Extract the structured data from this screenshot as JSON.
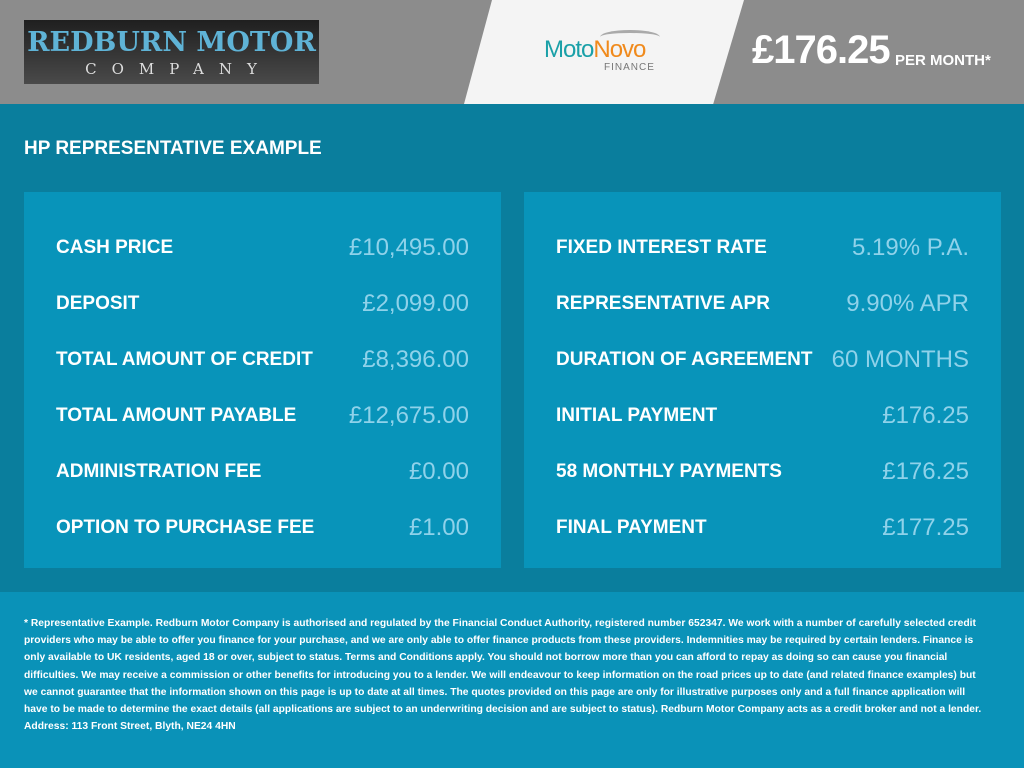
{
  "header": {
    "logo_line1": "REDBURN MOTOR",
    "logo_line2": "COMPANY",
    "partner_moto": "Moto",
    "partner_novo": "Novo",
    "partner_finance": "FINANCE",
    "monthly_price": "£176.25",
    "per_month": "PER MONTH*"
  },
  "main": {
    "title": "HP REPRESENTATIVE EXAMPLE",
    "left": [
      {
        "label": "CASH PRICE",
        "value": "£10,495.00"
      },
      {
        "label": "DEPOSIT",
        "value": "£2,099.00"
      },
      {
        "label": "TOTAL AMOUNT OF CREDIT",
        "value": "£8,396.00"
      },
      {
        "label": "TOTAL AMOUNT PAYABLE",
        "value": "£12,675.00"
      },
      {
        "label": "ADMINISTRATION FEE",
        "value": "£0.00"
      },
      {
        "label": "OPTION TO PURCHASE FEE",
        "value": "£1.00"
      }
    ],
    "right": [
      {
        "label": "FIXED INTEREST RATE",
        "value": "5.19% P.A."
      },
      {
        "label": "REPRESENTATIVE APR",
        "value": "9.90% APR"
      },
      {
        "label": "DURATION OF AGREEMENT",
        "value": "60 MONTHS"
      },
      {
        "label": "INITIAL PAYMENT",
        "value": "£176.25"
      },
      {
        "label": "58 MONTHLY PAYMENTS",
        "value": "£176.25"
      },
      {
        "label": "FINAL PAYMENT",
        "value": "£177.25"
      }
    ]
  },
  "footer": {
    "disclaimer": "* Representative Example. Redburn Motor Company is authorised and regulated by the Financial Conduct Authority, registered number 652347. We work with a number of carefully selected credit providers who may be able to offer you finance for your purchase, and we are only able to offer finance products from these providers. Indemnities may be required by certain lenders. Finance is only available to UK residents, aged 18 or over, subject to status. Terms and Conditions apply. You should not borrow more than you can afford to repay as doing so can cause you financial difficulties. We may receive a commission or other benefits for introducing you to a lender. We will endeavour to keep information on the road prices up to date (and related finance examples) but we cannot guarantee that the information shown on this page is up to date at all times. The quotes provided on this page are only for illustrative purposes only and a full finance application will have to be made to determine the exact details (all applications are subject to an underwriting decision and are subject to status). Redburn Motor Company acts as a credit broker and not a lender. Address: 113 Front Street, Blyth, NE24 4HN"
  },
  "colors": {
    "header": "#8c8c8c",
    "main": "#0a7e9d",
    "panel": "#0894ba",
    "footer": "#0a92b8",
    "value": "#8fd2ea"
  }
}
